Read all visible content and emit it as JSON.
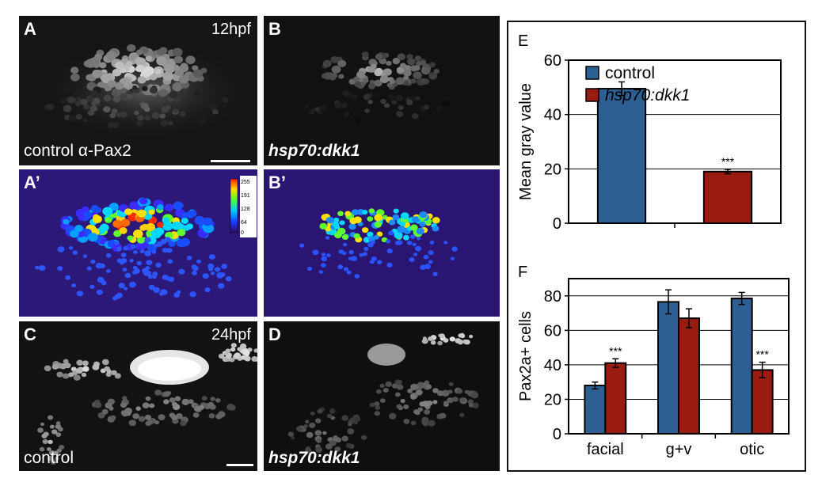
{
  "panels": {
    "A": {
      "label": "A",
      "caption": "control α-Pax2",
      "timepoint": "12hpf"
    },
    "B": {
      "label": "B",
      "caption": "hsp70:dkk1"
    },
    "A2": {
      "label": "A’",
      "scale_ticks": [
        "255",
        "191",
        "128",
        "64",
        "0"
      ]
    },
    "B2": {
      "label": "B’"
    },
    "C": {
      "label": "C",
      "caption": "control",
      "timepoint": "24hpf"
    },
    "D": {
      "label": "D",
      "caption": "hsp70:dkk1"
    }
  },
  "chart_data": [
    {
      "panel": "E",
      "type": "bar",
      "categories": [
        "control",
        "hsp70:dkk1"
      ],
      "values": [
        49.5,
        19
      ],
      "errors": [
        2.5,
        0.8
      ],
      "ylabel": "Mean gray value",
      "ylim": [
        0,
        60
      ],
      "yticks": [
        "0",
        "20",
        "40",
        "60"
      ],
      "legend": [
        "control",
        "hsp70:dkk1"
      ],
      "legend_position": "top-right",
      "annotations": [
        "***"
      ],
      "colors": [
        "#2e5f93",
        "#9a1b10"
      ]
    },
    {
      "panel": "F",
      "type": "bar",
      "categories": [
        "facial",
        "g+v",
        "otic"
      ],
      "series": [
        {
          "values": [
            28,
            76.5,
            78.5
          ],
          "errors": [
            2,
            7,
            3.5
          ]
        },
        {
          "values": [
            41,
            67,
            37
          ],
          "errors": [
            2.5,
            5.5,
            4.5
          ]
        }
      ],
      "ylabel": "Pax2a+ cells",
      "ylim": [
        0,
        90
      ],
      "yticks": [
        "0",
        "20",
        "40",
        "60",
        "80"
      ],
      "annotations": [
        "***",
        "***"
      ],
      "colors": [
        "#2e5f93",
        "#9a1b10"
      ]
    }
  ]
}
